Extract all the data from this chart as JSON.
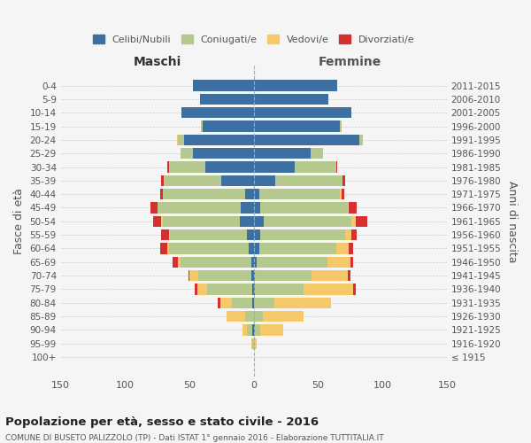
{
  "age_groups": [
    "100+",
    "95-99",
    "90-94",
    "85-89",
    "80-84",
    "75-79",
    "70-74",
    "65-69",
    "60-64",
    "55-59",
    "50-54",
    "45-49",
    "40-44",
    "35-39",
    "30-34",
    "25-29",
    "20-24",
    "15-19",
    "10-14",
    "5-9",
    "0-4"
  ],
  "birth_years": [
    "≤ 1915",
    "1916-1920",
    "1921-1925",
    "1926-1930",
    "1931-1935",
    "1936-1940",
    "1941-1945",
    "1946-1950",
    "1951-1955",
    "1956-1960",
    "1961-1965",
    "1966-1970",
    "1971-1975",
    "1976-1980",
    "1981-1985",
    "1986-1990",
    "1991-1995",
    "1996-2000",
    "2001-2005",
    "2006-2010",
    "2011-2015"
  ],
  "maschi": {
    "celibi": [
      0,
      0,
      1,
      0,
      1,
      1,
      2,
      2,
      4,
      5,
      11,
      10,
      7,
      25,
      38,
      47,
      54,
      40,
      56,
      42,
      47
    ],
    "coniugati": [
      0,
      1,
      4,
      7,
      16,
      35,
      41,
      55,
      62,
      60,
      60,
      65,
      64,
      45,
      28,
      10,
      5,
      1,
      0,
      0,
      0
    ],
    "vedovi": [
      0,
      1,
      4,
      14,
      9,
      8,
      7,
      2,
      1,
      1,
      1,
      0,
      0,
      0,
      0,
      0,
      1,
      0,
      0,
      0,
      0
    ],
    "divorziati": [
      0,
      0,
      0,
      0,
      2,
      2,
      1,
      4,
      6,
      6,
      6,
      5,
      2,
      2,
      1,
      0,
      0,
      0,
      0,
      0,
      0
    ]
  },
  "femmine": {
    "nubili": [
      0,
      0,
      1,
      0,
      0,
      1,
      1,
      2,
      4,
      5,
      8,
      5,
      4,
      17,
      32,
      44,
      82,
      67,
      76,
      58,
      65
    ],
    "coniugate": [
      0,
      0,
      4,
      7,
      16,
      38,
      44,
      55,
      60,
      66,
      68,
      68,
      63,
      52,
      32,
      10,
      3,
      1,
      0,
      0,
      0
    ],
    "vedove": [
      0,
      2,
      18,
      32,
      44,
      38,
      28,
      18,
      10,
      5,
      3,
      1,
      1,
      0,
      0,
      0,
      0,
      0,
      0,
      0,
      0
    ],
    "divorziate": [
      0,
      0,
      0,
      0,
      0,
      2,
      2,
      2,
      3,
      4,
      9,
      6,
      2,
      2,
      1,
      0,
      0,
      0,
      0,
      0,
      0
    ]
  },
  "colors": {
    "celibi": "#3d6fa0",
    "coniugati": "#b5c98e",
    "vedovi": "#f5c96a",
    "divorziati": "#d43030"
  },
  "xlim": 150,
  "title": "Popolazione per età, sesso e stato civile - 2016",
  "subtitle": "COMUNE DI BUSETO PALIZZOLO (TP) - Dati ISTAT 1° gennaio 2016 - Elaborazione TUTTITALIA.IT",
  "ylabel_left": "Fasce di età",
  "ylabel_right": "Anni di nascita",
  "xlabel_left": "Maschi",
  "xlabel_right": "Femmine",
  "bg_color": "#f5f5f5",
  "grid_color": "#cccccc"
}
